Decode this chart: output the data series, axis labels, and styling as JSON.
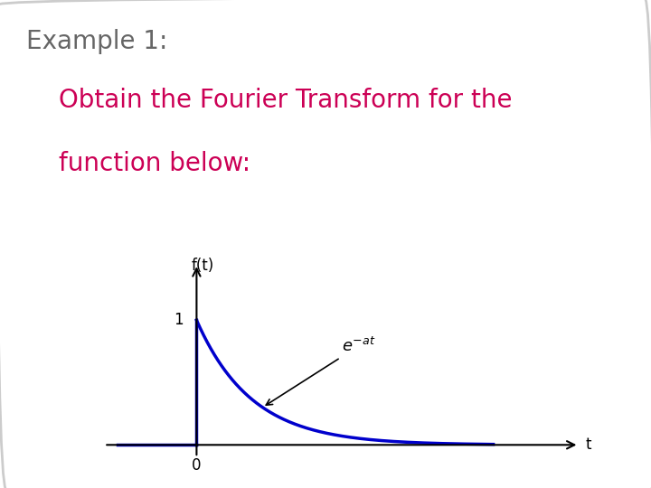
{
  "title": "Example 1:",
  "subtitle_line1": "Obtain the Fourier Transform for the",
  "subtitle_line2": "function below:",
  "title_color": "#666666",
  "subtitle_color": "#cc0055",
  "background_color": "#ffffff",
  "curve_color": "#0000cc",
  "axis_color": "#000000",
  "annotation_text": "$e^{-at}$",
  "ylabel": "f(t)",
  "xlabel": "t",
  "x0_label": "0",
  "y1_label": "1",
  "title_fontsize": 20,
  "subtitle_fontsize": 20,
  "label_fontsize": 12,
  "annotation_fontsize": 13,
  "border_color": "#cccccc",
  "a": 1.2
}
